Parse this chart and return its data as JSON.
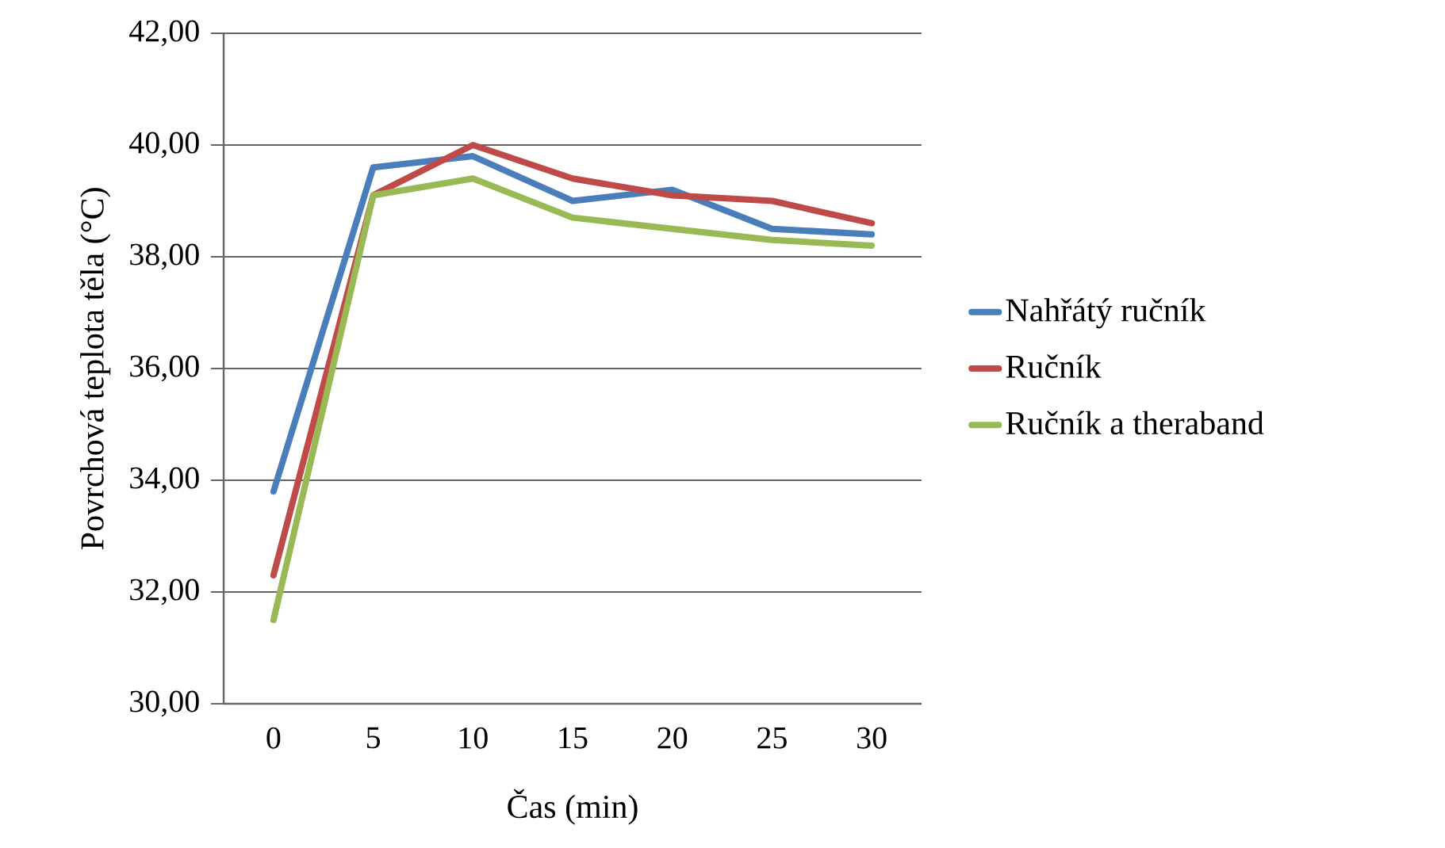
{
  "chart_data": {
    "type": "line",
    "xlabel": "Čas (min)",
    "ylabel": "Povrchová teplota těla (°C)",
    "categories": [
      "0",
      "5",
      "10",
      "15",
      "20",
      "25",
      "30"
    ],
    "series": [
      {
        "name": "Nahřátý ručník",
        "color": "#4a7ebb",
        "values": [
          33.8,
          39.6,
          39.8,
          39.0,
          39.2,
          38.5,
          38.4
        ]
      },
      {
        "name": "Ručník",
        "color": "#be4b48",
        "values": [
          32.3,
          39.1,
          40.0,
          39.4,
          39.1,
          39.0,
          38.6
        ]
      },
      {
        "name": "Ručník a theraband",
        "color": "#98b954",
        "values": [
          31.5,
          39.1,
          39.4,
          38.7,
          38.5,
          38.3,
          38.2
        ]
      }
    ],
    "ylim": [
      30,
      42
    ],
    "yticks": [
      {
        "value": 30,
        "label": "30,00"
      },
      {
        "value": 32,
        "label": "32,00"
      },
      {
        "value": 34,
        "label": "34,00"
      },
      {
        "value": 36,
        "label": "36,00"
      },
      {
        "value": 38,
        "label": "38,00"
      },
      {
        "value": 40,
        "label": "40,00"
      },
      {
        "value": 42,
        "label": "42,00"
      }
    ],
    "grid": "y",
    "legend": "right",
    "marker": "none",
    "line_style": "solid"
  }
}
